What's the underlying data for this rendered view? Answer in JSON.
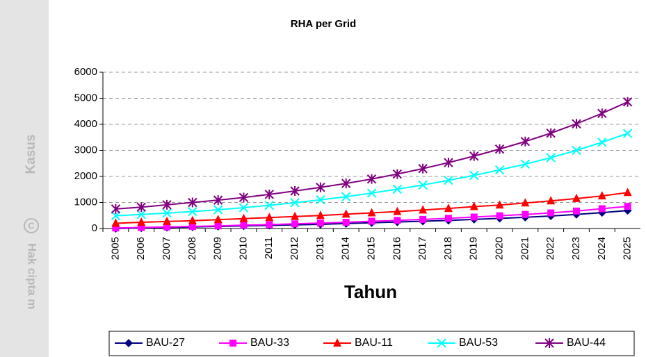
{
  "watermark": {
    "top": "Kasus",
    "symbol": "C",
    "bottom": "Hak cipta m"
  },
  "chart_data": {
    "type": "line",
    "title": "RHA per Grid",
    "x_label": "Tahun",
    "categories": [
      "2005",
      "2006",
      "2007",
      "2008",
      "2009",
      "2010",
      "2011",
      "2012",
      "2013",
      "2014",
      "2015",
      "2016",
      "2017",
      "2018",
      "2019",
      "2020",
      "2021",
      "2022",
      "2023",
      "2024",
      "2025"
    ],
    "ylim": [
      0,
      6000
    ],
    "yticks": [
      0,
      1000,
      2000,
      3000,
      4000,
      5000,
      6000
    ],
    "grid": true,
    "legend": "bottom",
    "series": [
      {
        "name": "BAU-27",
        "color": "#000080",
        "marker": "diamond",
        "values": [
          0,
          20,
          40,
          60,
          80,
          100,
          120,
          140,
          160,
          190,
          220,
          250,
          280,
          310,
          350,
          390,
          430,
          480,
          540,
          610,
          690
        ]
      },
      {
        "name": "BAU-33",
        "color": "#ff00ff",
        "marker": "square",
        "values": [
          20,
          40,
          60,
          80,
          100,
          130,
          150,
          180,
          210,
          240,
          280,
          310,
          350,
          390,
          440,
          490,
          540,
          600,
          670,
          760,
          850
        ]
      },
      {
        "name": "BAU-11",
        "color": "#ff0000",
        "marker": "triangle",
        "values": [
          200,
          240,
          270,
          300,
          340,
          380,
          420,
          460,
          500,
          550,
          600,
          650,
          710,
          770,
          840,
          900,
          980,
          1060,
          1150,
          1250,
          1380
        ]
      },
      {
        "name": "BAU-53",
        "color": "#00ffff",
        "marker": "x",
        "values": [
          490,
          540,
          590,
          650,
          720,
          800,
          890,
          990,
          1100,
          1220,
          1360,
          1510,
          1670,
          1850,
          2040,
          2250,
          2470,
          2720,
          3000,
          3310,
          3650
        ]
      },
      {
        "name": "BAU-44",
        "color": "#800080",
        "marker": "star",
        "values": [
          750,
          820,
          910,
          1000,
          1090,
          1190,
          1310,
          1440,
          1580,
          1730,
          1900,
          2090,
          2300,
          2530,
          2780,
          3050,
          3340,
          3660,
          4020,
          4420,
          4860
        ]
      }
    ]
  }
}
